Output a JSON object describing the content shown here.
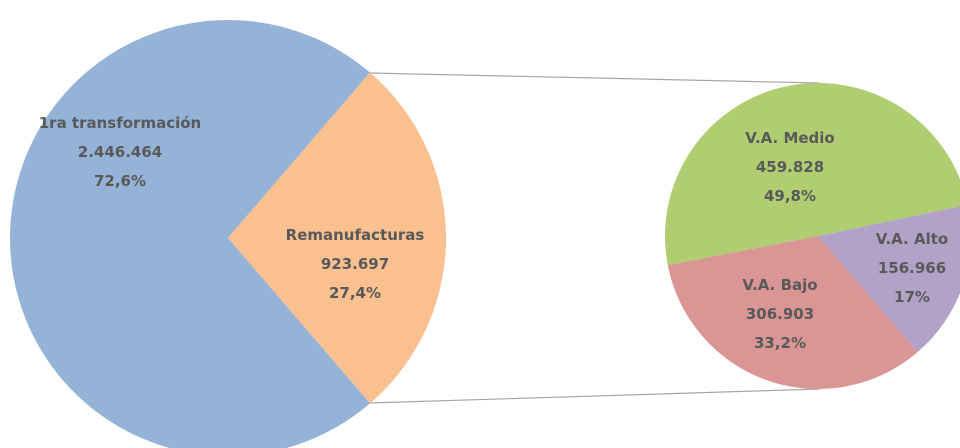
{
  "chart_data": [
    {
      "type": "pie",
      "categories": [
        "1ra transformación",
        "Remanufacturas"
      ],
      "values": [
        2446464,
        923697
      ],
      "value_labels": [
        "2.446.464",
        "923.697"
      ],
      "percents": [
        72.6,
        27.4
      ],
      "percent_labels": [
        "72,6%",
        "27,4%"
      ],
      "colors": [
        "#95b3d7",
        "#fac090"
      ]
    },
    {
      "type": "pie",
      "categories": [
        "V.A. Medio",
        "V.A. Alto",
        "V.A. Bajo"
      ],
      "values": [
        459828,
        156966,
        306903
      ],
      "value_labels": [
        "459.828",
        "156.966",
        "306.903"
      ],
      "percents": [
        49.8,
        17,
        33.2
      ],
      "percent_labels": [
        "49,8%",
        "17%",
        "33,2%"
      ],
      "colors": [
        "#b0cd72",
        "#b3a2c7",
        "#d99694"
      ]
    }
  ]
}
